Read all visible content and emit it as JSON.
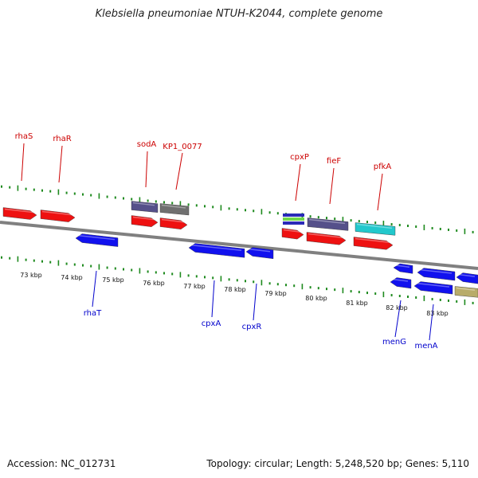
{
  "title": "Klebsiella pneumoniae NTUH-K2044, complete genome",
  "footer": {
    "accession": "Accession: NC_012731",
    "topology": "Topology: circular; Length: 5,248,520 bp; Genes: 5,110"
  },
  "colors": {
    "backbone": "#808080",
    "tick": "#1e8a1e",
    "forward_label": "#cc0000",
    "reverse_label": "#0000cc",
    "red_gene": "#ee1111",
    "blue_gene": "#1111ee",
    "purple_gene": "#55508a",
    "grey_gene": "#707070",
    "cyan_gene": "#22c8cc",
    "tan_gene": "#b8ac6a"
  },
  "axis_ticks": [
    "73 kbp",
    "74 kbp",
    "75 kbp",
    "76 kbp",
    "77 kbp",
    "78 kbp",
    "79 kbp",
    "80 kbp",
    "81 kbp",
    "82 kbp",
    "83 kbp"
  ],
  "forward_labels": [
    "rhaS",
    "rhaR",
    "sodA",
    "KP1_0077",
    "cpxP",
    "fieF",
    "pfkA"
  ],
  "reverse_labels": [
    "rhaT",
    "cpxA",
    "cpxR",
    "menG",
    "menA"
  ]
}
